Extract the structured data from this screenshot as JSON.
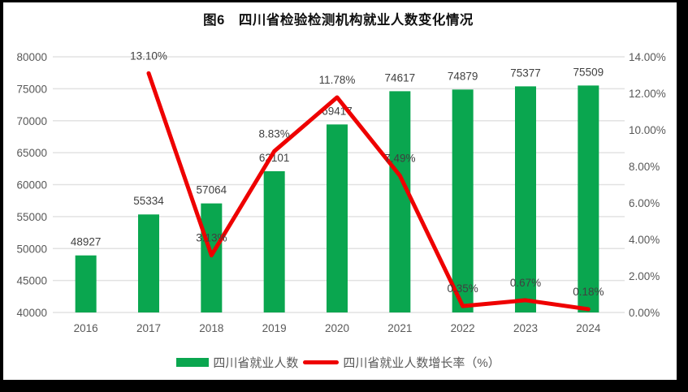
{
  "chart_data": {
    "type": "bar",
    "title": "图6　四川省检验检测机构就业人数变化情况",
    "categories": [
      "2016",
      "2017",
      "2018",
      "2019",
      "2020",
      "2021",
      "2022",
      "2023",
      "2024"
    ],
    "series": [
      {
        "name": "四川省就业人数",
        "type": "bar",
        "axis": "left",
        "values": [
          48927,
          55334,
          57064,
          62101,
          69417,
          74617,
          74879,
          75377,
          75509
        ],
        "labels": [
          "48927",
          "55334",
          "57064",
          "62101",
          "69417",
          "74617",
          "74879",
          "75377",
          "75509"
        ],
        "color": "#0aa64f"
      },
      {
        "name": "四川省就业人数增长率（%）",
        "type": "line",
        "axis": "right",
        "values": [
          null,
          13.1,
          3.13,
          8.83,
          11.78,
          7.49,
          0.35,
          0.67,
          0.18
        ],
        "labels": [
          null,
          "13.10%",
          "3.13%",
          "8.83%",
          "11.78%",
          "7.49%",
          "0.35%",
          "0.67%",
          "0.18%"
        ],
        "color": "#ee0000"
      }
    ],
    "left_axis": {
      "min": 40000,
      "max": 80000,
      "step": 5000,
      "ticks": [
        "40000",
        "45000",
        "50000",
        "55000",
        "60000",
        "65000",
        "70000",
        "75000",
        "80000"
      ]
    },
    "right_axis": {
      "min": 0,
      "max": 14,
      "step": 2,
      "ticks": [
        "0.00%",
        "2.00%",
        "4.00%",
        "6.00%",
        "8.00%",
        "10.00%",
        "12.00%",
        "14.00%"
      ]
    },
    "grid": true,
    "legend_position": "bottom",
    "colors": {
      "bar": "#0aa64f",
      "line": "#ee0000",
      "grid": "#e2e2e2",
      "tick_text": "#595959",
      "label_text": "#404040",
      "title_text": "#111111",
      "frame": "#000000",
      "background": "#ffffff"
    }
  }
}
